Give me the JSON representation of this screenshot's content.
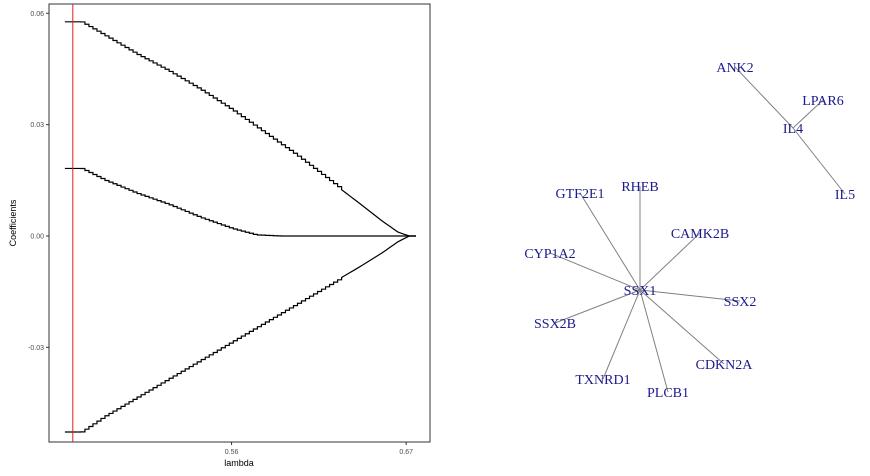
{
  "chart_data": [
    {
      "type": "line",
      "title": "",
      "xlabel": "lambda",
      "ylabel": "Coefficients",
      "xlim": [
        0.445,
        0.685
      ],
      "ylim": [
        -0.0555,
        0.0625
      ],
      "x_ticks": [
        0.56,
        0.67
      ],
      "x_tick_labels": [
        "0.56",
        "0.67"
      ],
      "y_ticks": [
        -0.03,
        0.0,
        0.03,
        0.06
      ],
      "y_tick_labels": [
        "-0.03",
        "0.00",
        "0.03",
        "0.06"
      ],
      "grid": false,
      "selected_lambda": 0.46,
      "selected_lambda_color": "#e41a1c",
      "line_color": "#000000",
      "series": [
        {
          "x": [
            0.455,
            0.465,
            0.48,
            0.5,
            0.52,
            0.54,
            0.56,
            0.58,
            0.6,
            0.62,
            0.64,
            0.655,
            0.665,
            0.672
          ],
          "y": [
            0.0577,
            0.0577,
            0.054,
            0.049,
            0.0445,
            0.0395,
            0.034,
            0.028,
            0.022,
            0.0155,
            0.009,
            0.004,
            0.001,
            0.0
          ]
        },
        {
          "x": [
            0.455,
            0.465,
            0.48,
            0.5,
            0.52,
            0.54,
            0.56,
            0.575,
            0.59,
            0.6,
            0.62,
            0.65,
            0.672
          ],
          "y": [
            0.0182,
            0.0182,
            0.015,
            0.0115,
            0.0085,
            0.005,
            0.002,
            0.0003,
            0.0,
            0.0,
            0.0,
            0.0,
            0.0
          ]
        },
        {
          "x": [
            0.455,
            0.465,
            0.48,
            0.5,
            0.52,
            0.54,
            0.56,
            0.58,
            0.6,
            0.62,
            0.64,
            0.655,
            0.665,
            0.672
          ],
          "y": [
            -0.0528,
            -0.0528,
            -0.0485,
            -0.0435,
            -0.0385,
            -0.0335,
            -0.0285,
            -0.0235,
            -0.0185,
            -0.0135,
            -0.0085,
            -0.0045,
            -0.0015,
            0.0
          ]
        }
      ]
    },
    {
      "type": "network",
      "node_color": "#1a1a8c",
      "edge_color": "#808080",
      "nodes": [
        "ANK2",
        "LPAR6",
        "IL4",
        "IL5",
        "GTF2E1",
        "RHEB",
        "CAMK2B",
        "CYP1A2",
        "SSX1",
        "SSX2",
        "SSX2B",
        "CDKN2A",
        "TXNRD1",
        "PLCB1"
      ],
      "edges": [
        [
          "IL4",
          "ANK2"
        ],
        [
          "IL4",
          "LPAR6"
        ],
        [
          "IL4",
          "IL5"
        ],
        [
          "SSX1",
          "GTF2E1"
        ],
        [
          "SSX1",
          "RHEB"
        ],
        [
          "SSX1",
          "CAMK2B"
        ],
        [
          "SSX1",
          "CYP1A2"
        ],
        [
          "SSX1",
          "SSX2"
        ],
        [
          "SSX1",
          "SSX2B"
        ],
        [
          "SSX1",
          "CDKN2A"
        ],
        [
          "SSX1",
          "TXNRD1"
        ],
        [
          "SSX1",
          "PLCB1"
        ]
      ]
    }
  ]
}
